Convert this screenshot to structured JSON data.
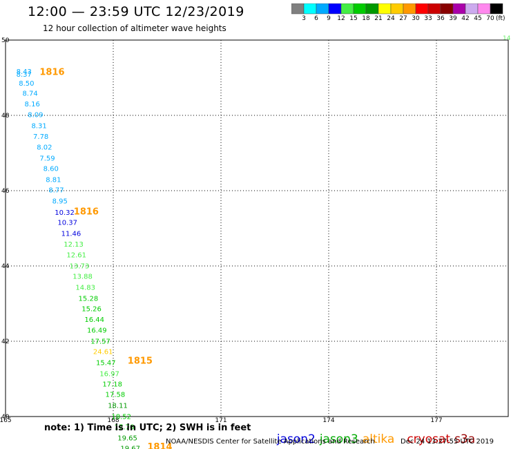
{
  "title": "12:00 — 23:59 UTC 12/23/2019",
  "subtitle": "12 hour collection of altimeter wave heights",
  "note": "note: 1) Time is in UTC; 2) SWH is in feet",
  "footer": {
    "org": "NOAA/NESDIS Center for Satellite Applications and Research",
    "timestamp": "Dec 24 13:27:55 UTC 2019"
  },
  "corner_label": "14",
  "satellites": [
    {
      "name": "jason2",
      "color": "#0000dd"
    },
    {
      "name": "jason3",
      "color": "#00aa00"
    },
    {
      "name": "altika",
      "color": "#ff9900"
    },
    {
      "name": "cryosat",
      "color": "#cc0000"
    },
    {
      "name": "s3a",
      "color": "#990000"
    }
  ],
  "colorbar": {
    "unit": "(ft)",
    "colors": [
      "#808080",
      "#00ffff",
      "#00aaff",
      "#0000ff",
      "#44ee44",
      "#00cc00",
      "#009900",
      "#ffff00",
      "#ffcc00",
      "#ff9900",
      "#ff0000",
      "#cc0000",
      "#880000",
      "#aa00aa",
      "#ccaaee",
      "#ff88ee",
      "#000000"
    ],
    "ticks": [
      "3",
      "6",
      "9",
      "12",
      "15",
      "18",
      "21",
      "24",
      "27",
      "30",
      "33",
      "36",
      "39",
      "42",
      "45",
      "70"
    ]
  },
  "chart_data": {
    "type": "scatter",
    "xlabel": "",
    "ylabel": "",
    "xlim": [
      165,
      179
    ],
    "ylim": [
      40,
      50
    ],
    "grid": true,
    "x_ticks": [
      {
        "value": 165,
        "label": "165"
      },
      {
        "value": 168,
        "label": "168"
      },
      {
        "value": 171,
        "label": "171"
      },
      {
        "value": 174,
        "label": "174"
      },
      {
        "value": 177,
        "label": "177"
      }
    ],
    "y_ticks": [
      {
        "value": 50,
        "label": "50"
      },
      {
        "value": 48,
        "label": "48"
      },
      {
        "value": 46,
        "label": "46"
      },
      {
        "value": 44,
        "label": "44"
      },
      {
        "value": 42,
        "label": "42"
      },
      {
        "value": 40,
        "label": "40"
      }
    ],
    "points": [
      {
        "lon": 165.3,
        "lat": 49.1,
        "label": "8.43",
        "color": "#00aaff"
      },
      {
        "lon": 165.3,
        "lat": 49.03,
        "label": "8.37",
        "color": "#00aaff"
      },
      {
        "lon": 165.37,
        "lat": 48.79,
        "label": "8.50",
        "color": "#00aaff"
      },
      {
        "lon": 165.47,
        "lat": 48.52,
        "label": "8.74",
        "color": "#00aaff"
      },
      {
        "lon": 165.53,
        "lat": 48.24,
        "label": "8.16",
        "color": "#00aaff"
      },
      {
        "lon": 165.62,
        "lat": 47.95,
        "label": "8.09",
        "color": "#00aaff"
      },
      {
        "lon": 165.72,
        "lat": 47.66,
        "label": "8.31",
        "color": "#00aaff"
      },
      {
        "lon": 165.77,
        "lat": 47.38,
        "label": "7.78",
        "color": "#00aaff"
      },
      {
        "lon": 165.87,
        "lat": 47.09,
        "label": "8.02",
        "color": "#00aaff"
      },
      {
        "lon": 165.95,
        "lat": 46.8,
        "label": "7.59",
        "color": "#00aaff"
      },
      {
        "lon": 166.05,
        "lat": 46.52,
        "label": "8.60",
        "color": "#00aaff"
      },
      {
        "lon": 166.12,
        "lat": 46.23,
        "label": "8.81",
        "color": "#00aaff"
      },
      {
        "lon": 166.2,
        "lat": 45.95,
        "label": "8.77",
        "color": "#00aaff"
      },
      {
        "lon": 166.3,
        "lat": 45.66,
        "label": "8.95",
        "color": "#00aaff"
      },
      {
        "lon": 166.37,
        "lat": 45.36,
        "label": "10.32",
        "color": "#0000dd"
      },
      {
        "lon": 166.45,
        "lat": 45.09,
        "label": "10.37",
        "color": "#0000dd"
      },
      {
        "lon": 166.55,
        "lat": 44.8,
        "label": "11.46",
        "color": "#0000dd"
      },
      {
        "lon": 166.62,
        "lat": 44.51,
        "label": "12.13",
        "color": "#44ee44"
      },
      {
        "lon": 166.7,
        "lat": 44.23,
        "label": "12.61",
        "color": "#44ee44"
      },
      {
        "lon": 166.78,
        "lat": 43.94,
        "label": "13.73",
        "color": "#44ee44"
      },
      {
        "lon": 166.87,
        "lat": 43.66,
        "label": "13.88",
        "color": "#44ee44"
      },
      {
        "lon": 166.95,
        "lat": 43.37,
        "label": "14.83",
        "color": "#44ee44"
      },
      {
        "lon": 167.03,
        "lat": 43.07,
        "label": "15.28",
        "color": "#00cc00"
      },
      {
        "lon": 167.12,
        "lat": 42.8,
        "label": "15.26",
        "color": "#00cc00"
      },
      {
        "lon": 167.2,
        "lat": 42.51,
        "label": "16.44",
        "color": "#00cc00"
      },
      {
        "lon": 167.27,
        "lat": 42.23,
        "label": "16.49",
        "color": "#00cc00"
      },
      {
        "lon": 167.37,
        "lat": 41.94,
        "label": "17.57",
        "color": "#00cc00"
      },
      {
        "lon": 167.44,
        "lat": 41.66,
        "label": "24.61",
        "color": "#ffcc00"
      },
      {
        "lon": 167.52,
        "lat": 41.37,
        "label": "15.47",
        "color": "#00cc00"
      },
      {
        "lon": 167.62,
        "lat": 41.07,
        "label": "16.97",
        "color": "#44ee44"
      },
      {
        "lon": 167.7,
        "lat": 40.8,
        "label": "17.18",
        "color": "#00cc00"
      },
      {
        "lon": 167.78,
        "lat": 40.52,
        "label": "17.58",
        "color": "#00cc00"
      },
      {
        "lon": 167.85,
        "lat": 40.23,
        "label": "18.11",
        "color": "#009900"
      },
      {
        "lon": 167.95,
        "lat": 39.94,
        "label": "18.52",
        "color": "#00cc00"
      },
      {
        "lon": 168.03,
        "lat": 39.66,
        "label": "17.76",
        "color": "#00cc00"
      },
      {
        "lon": 168.12,
        "lat": 39.37,
        "label": "19.65",
        "color": "#009900"
      },
      {
        "lon": 168.2,
        "lat": 39.09,
        "label": "19.67",
        "color": "#009900"
      }
    ],
    "annotations": [
      {
        "lon": 165.95,
        "lat": 49.07,
        "label": "1816",
        "color": "#ff9900"
      },
      {
        "lon": 166.9,
        "lat": 45.37,
        "label": "1816",
        "color": "#ff9900"
      },
      {
        "lon": 168.4,
        "lat": 41.4,
        "label": "1815",
        "color": "#ff9900"
      },
      {
        "lon": 168.95,
        "lat": 39.12,
        "label": "1814",
        "color": "#ff9900"
      }
    ]
  }
}
